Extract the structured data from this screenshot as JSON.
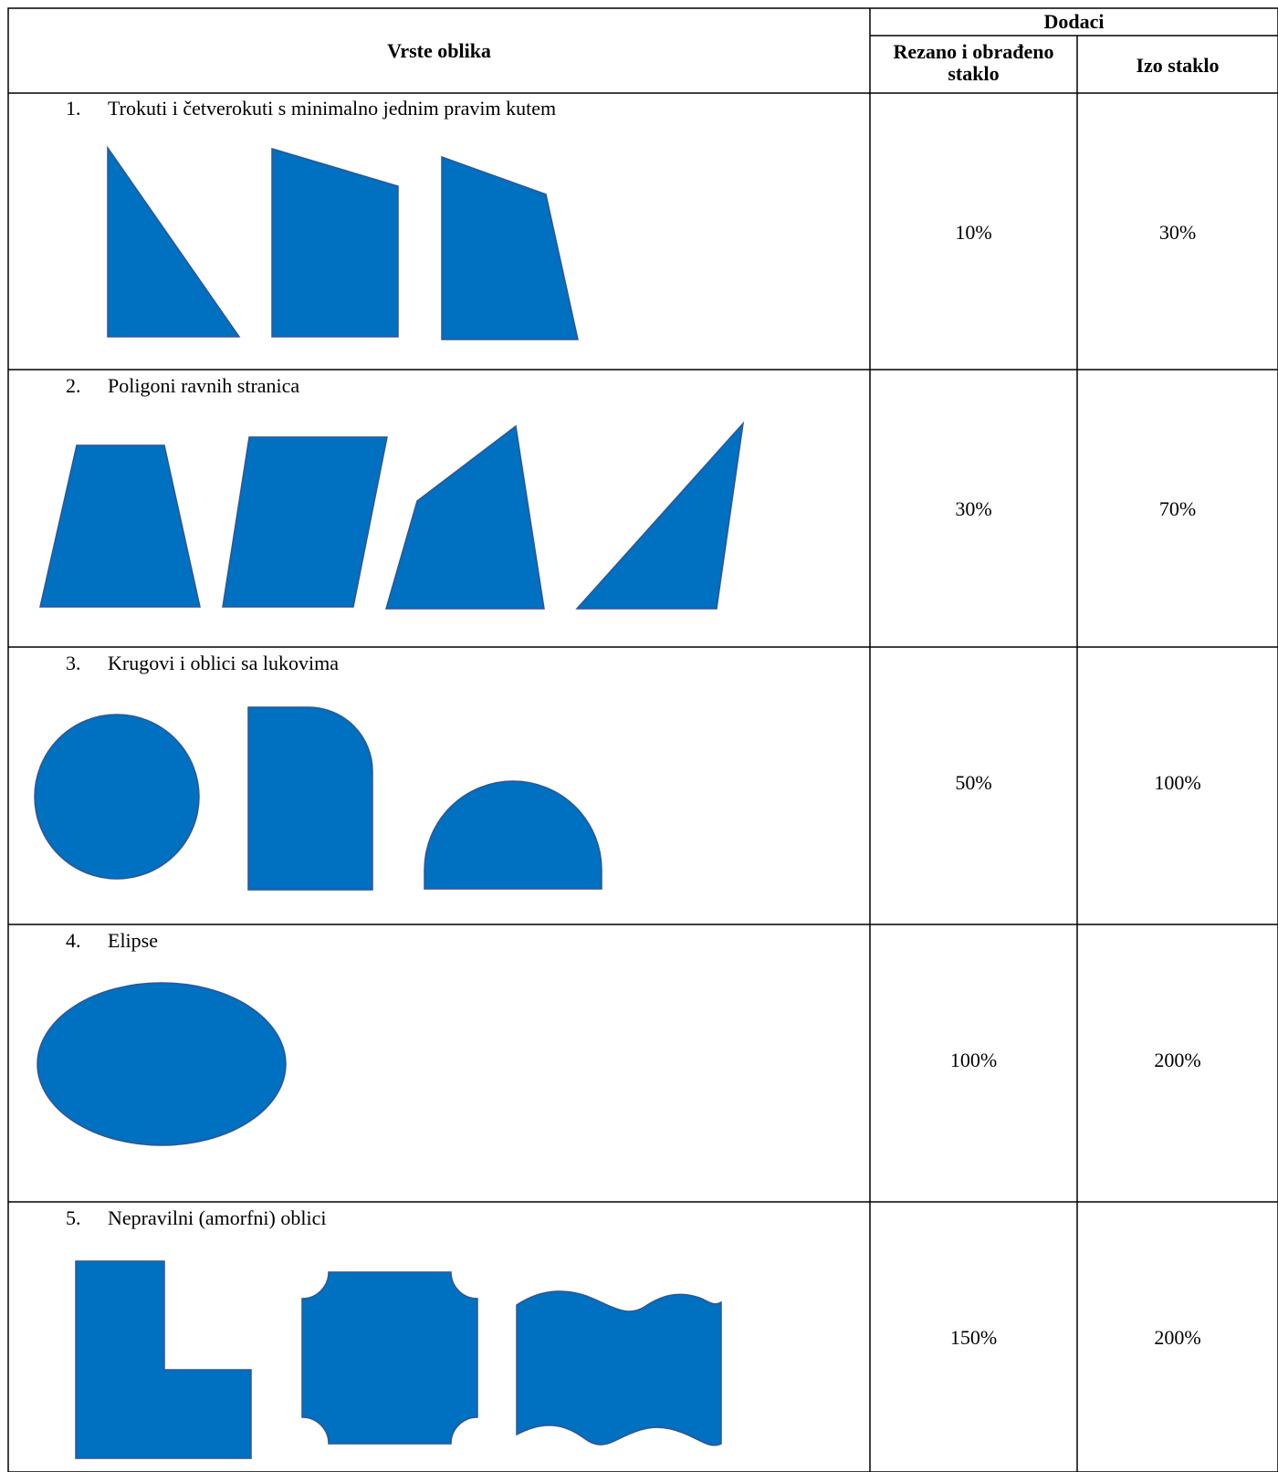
{
  "header": {
    "shape_types": "Vrste oblika",
    "additions": "Dodaci",
    "cut_processed": "Rezano i obrađeno staklo",
    "izo_glass": "Izo staklo"
  },
  "rows": [
    {
      "number": "1.",
      "title": "Trokuti i četverokuti s minimalno jednim pravim kutem",
      "cut_processed": "10%",
      "izo_glass": "30%",
      "shape_icons": [
        "right-triangle",
        "right-trapezoid",
        "irregular-quadrilateral"
      ]
    },
    {
      "number": "2.",
      "title": "Poligoni ravnih stranica",
      "cut_processed": "30%",
      "izo_glass": "70%",
      "shape_icons": [
        "trapezoid",
        "parallelogram",
        "pentagon",
        "triangle"
      ]
    },
    {
      "number": "3.",
      "title": "Krugovi i oblici sa lukovima",
      "cut_processed": "50%",
      "izo_glass": "100%",
      "shape_icons": [
        "circle",
        "rounded-corner-rectangle",
        "arch"
      ]
    },
    {
      "number": "4.",
      "title": "Elipse",
      "cut_processed": "100%",
      "izo_glass": "200%",
      "shape_icons": [
        "ellipse"
      ]
    },
    {
      "number": "5.",
      "title": "Nepravilni (amorfni) oblici",
      "cut_processed": "150%",
      "izo_glass": "200%",
      "shape_icons": [
        "l-shape",
        "concave-corner-square",
        "wave-shape"
      ]
    }
  ],
  "colors": {
    "shape_fill": "#0070C0",
    "shape_stroke": "#2F5597",
    "border": "#000000"
  }
}
